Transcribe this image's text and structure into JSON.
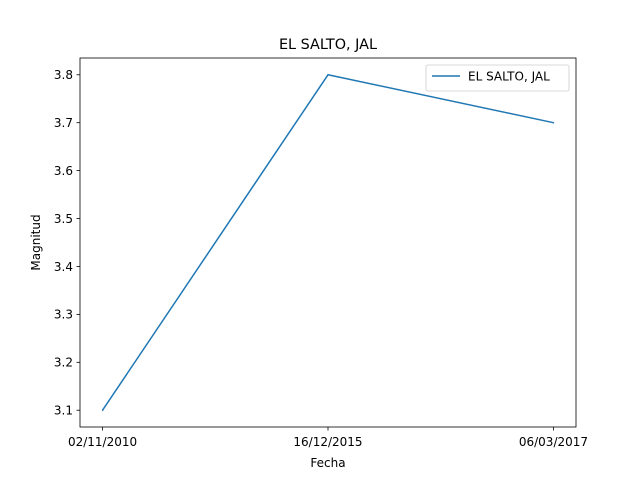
{
  "chart_data": {
    "type": "line",
    "title": "EL SALTO, JAL",
    "xlabel": "Fecha",
    "ylabel": "Magnitud",
    "categories": [
      "02/11/2010",
      "16/12/2015",
      "06/03/2017"
    ],
    "series": [
      {
        "name": "EL SALTO, JAL",
        "values": [
          3.1,
          3.8,
          3.7
        ],
        "color": "#1f77b4"
      }
    ],
    "ylim": [
      3.065,
      3.835
    ],
    "yticks": [
      "3.1",
      "3.2",
      "3.3",
      "3.4",
      "3.5",
      "3.6",
      "3.7",
      "3.8"
    ],
    "legend": "top-right",
    "grid": false
  }
}
